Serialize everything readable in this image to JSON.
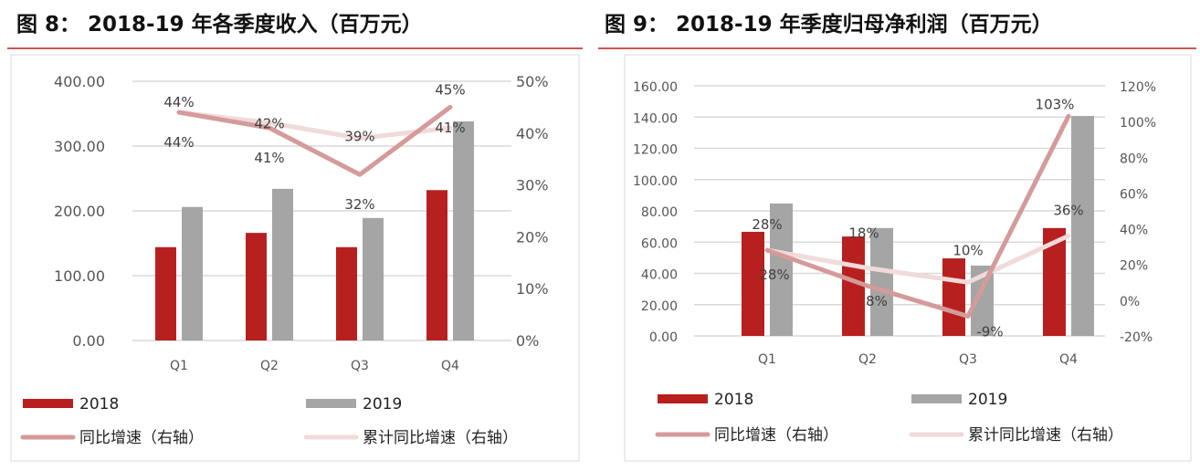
{
  "colors": {
    "bar_2018": "#b8201f",
    "bar_2019": "#a5a5a5",
    "yoy_line": "#d59a9a",
    "cum_line": "#f0dada",
    "title_rule": "#b8201f",
    "grid": "#d9d9d9"
  },
  "chart_data": [
    {
      "type": "bar",
      "title": "图 8：  2018-19 年各季度收入（百万元）",
      "categories": [
        "Q1",
        "Q2",
        "Q3",
        "Q4"
      ],
      "series": [
        {
          "name": "2018",
          "type": "bar",
          "axis": "left",
          "values": [
            144,
            166,
            144,
            232
          ]
        },
        {
          "name": "2019",
          "type": "bar",
          "axis": "left",
          "values": [
            206,
            234,
            189,
            338
          ]
        },
        {
          "name": "同比增速（右轴）",
          "type": "line",
          "axis": "right",
          "values": [
            44,
            41,
            32,
            45
          ],
          "labels": [
            "44%",
            "41%",
            "32%",
            "45%"
          ]
        },
        {
          "name": "累计同比增速（右轴）",
          "type": "line",
          "axis": "right",
          "values": [
            44,
            42,
            39,
            41
          ],
          "labels": [
            "44%",
            "42%",
            "39%",
            "41%"
          ]
        }
      ],
      "ylim": [
        0,
        400
      ],
      "y_ticks": [
        "0.00",
        "100.00",
        "200.00",
        "300.00",
        "400.00"
      ],
      "y2lim": [
        0,
        50
      ],
      "y2_ticks": [
        "0%",
        "10%",
        "20%",
        "30%",
        "40%",
        "50%"
      ],
      "grid": true,
      "legend": "bottom"
    },
    {
      "type": "bar",
      "title": "图 9：  2018-19 年季度归母净利润（百万元）",
      "categories": [
        "Q1",
        "Q2",
        "Q3",
        "Q4"
      ],
      "series": [
        {
          "name": "2018",
          "type": "bar",
          "axis": "left",
          "values": [
            66.6,
            63.6,
            49.6,
            69
          ]
        },
        {
          "name": "2019",
          "type": "bar",
          "axis": "left",
          "values": [
            84.7,
            69,
            45,
            140.7
          ]
        },
        {
          "name": "同比增速（右轴）",
          "type": "line",
          "axis": "right",
          "values": [
            28,
            8,
            -9,
            103
          ],
          "labels": [
            "28%",
            "8%",
            "-9%",
            "103%"
          ]
        },
        {
          "name": "累计同比增速（右轴）",
          "type": "line",
          "axis": "right",
          "values": [
            28,
            18,
            10,
            36
          ],
          "labels": [
            "28%",
            "18%",
            "10%",
            "36%"
          ]
        }
      ],
      "ylim": [
        0,
        160
      ],
      "y_ticks": [
        "0.00",
        "20.00",
        "40.00",
        "60.00",
        "80.00",
        "100.00",
        "120.00",
        "140.00",
        "160.00"
      ],
      "y2lim": [
        -20,
        120
      ],
      "y2_ticks": [
        "-20%",
        "0%",
        "20%",
        "40%",
        "60%",
        "80%",
        "100%",
        "120%"
      ],
      "grid": true,
      "legend": "bottom"
    }
  ]
}
